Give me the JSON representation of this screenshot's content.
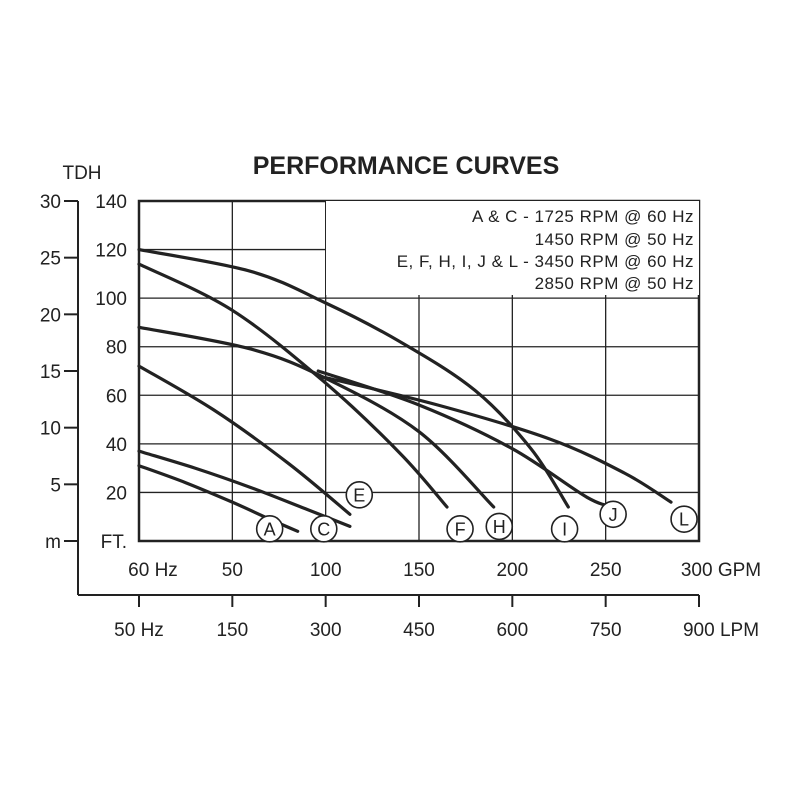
{
  "colors": {
    "ink": "#222222",
    "background": "#ffffff"
  },
  "chart_data": {
    "type": "line",
    "title": "PERFORMANCE CURVES",
    "ylabel_outer": "TDH",
    "ylabel_inner": "",
    "legend_notes": [
      "A & C - 1725 RPM @ 60 Hz",
      "1450 RPM @ 50 Hz",
      "E, F, H, I, J & L - 3450 RPM @ 60 Hz",
      "2850 RPM @ 50 Hz"
    ],
    "x_gpm": {
      "ticks": [
        "60 Hz",
        "50",
        "100",
        "150",
        "200",
        "250",
        "300 GPM"
      ],
      "values": [
        0,
        50,
        100,
        150,
        200,
        250,
        300
      ],
      "range": [
        0,
        300
      ]
    },
    "x_lpm": {
      "ticks": [
        "50 Hz",
        "150",
        "300",
        "450",
        "600",
        "750",
        "900 LPM"
      ],
      "values": [
        0,
        150,
        300,
        450,
        600,
        750,
        900
      ],
      "range": [
        0,
        900
      ]
    },
    "y_ft": {
      "ticks": [
        "FT.",
        "20",
        "40",
        "60",
        "80",
        "100",
        "120",
        "140"
      ],
      "values": [
        0,
        20,
        40,
        60,
        80,
        100,
        120,
        140
      ],
      "range": [
        0,
        140
      ]
    },
    "y_m": {
      "ticks": [
        "m",
        "5",
        "10",
        "15",
        "20",
        "25",
        "30"
      ],
      "values": [
        0,
        5,
        10,
        15,
        20,
        25,
        30
      ],
      "range": [
        0,
        30
      ]
    },
    "grid": true,
    "series": [
      {
        "name": "A",
        "points": [
          [
            0,
            31
          ],
          [
            25,
            24
          ],
          [
            50,
            16
          ],
          [
            70,
            9
          ],
          [
            85,
            4
          ]
        ],
        "label_at": [
          70,
          5
        ]
      },
      {
        "name": "C",
        "points": [
          [
            0,
            37
          ],
          [
            30,
            30
          ],
          [
            60,
            22
          ],
          [
            90,
            13
          ],
          [
            113,
            6
          ]
        ],
        "label_at": [
          99,
          5
        ]
      },
      {
        "name": "E",
        "points": [
          [
            0,
            72
          ],
          [
            40,
            54
          ],
          [
            80,
            32
          ],
          [
            113,
            11
          ]
        ],
        "label_at": [
          118,
          19
        ]
      },
      {
        "name": "F",
        "points": [
          [
            0,
            114
          ],
          [
            50,
            95
          ],
          [
            100,
            65
          ],
          [
            140,
            36
          ],
          [
            165,
            14
          ]
        ],
        "label_at": [
          172,
          5
        ]
      },
      {
        "name": "H",
        "points": [
          [
            0,
            88
          ],
          [
            60,
            79
          ],
          [
            100,
            67
          ],
          [
            150,
            45
          ],
          [
            190,
            14
          ]
        ],
        "label_at": [
          193,
          6
        ]
      },
      {
        "name": "I",
        "points": [
          [
            0,
            120
          ],
          [
            60,
            111
          ],
          [
            100,
            98
          ],
          [
            140,
            82
          ],
          [
            180,
            62
          ],
          [
            210,
            38
          ],
          [
            230,
            14
          ]
        ],
        "label_at": [
          228,
          5
        ]
      },
      {
        "name": "J",
        "points": [
          [
            96,
            70
          ],
          [
            150,
            56
          ],
          [
            200,
            38
          ],
          [
            240,
            18
          ],
          [
            255,
            14
          ]
        ],
        "label_at": [
          254,
          11
        ]
      },
      {
        "name": "L",
        "points": [
          [
            96,
            68
          ],
          [
            160,
            56
          ],
          [
            220,
            42
          ],
          [
            260,
            28
          ],
          [
            285,
            16
          ]
        ],
        "label_at": [
          292,
          9
        ]
      }
    ]
  }
}
